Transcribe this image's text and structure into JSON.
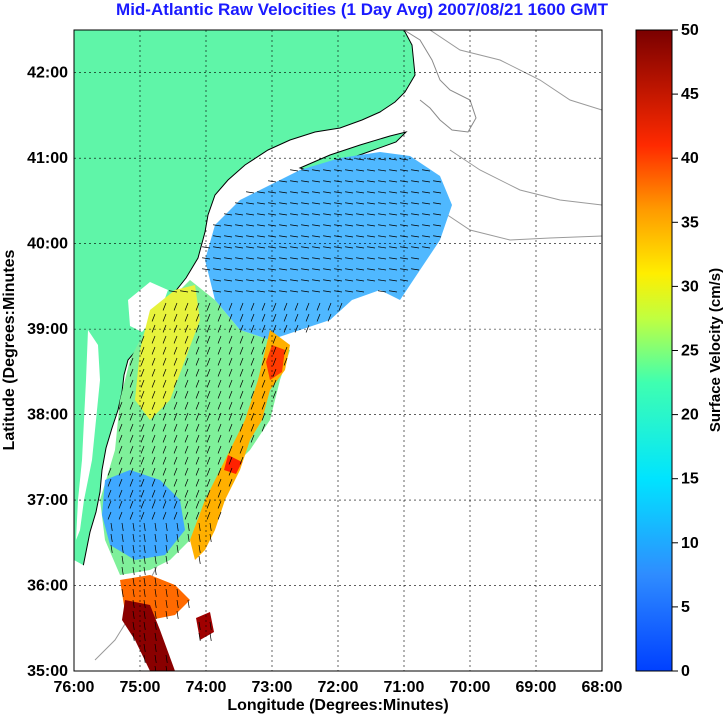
{
  "title": "Mid-Atlantic Raw Velocities (1 Day Avg) 2007/08/21 1600 GMT",
  "map": {
    "xlabel": "Longitude (Degrees:Minutes)",
    "ylabel": "Latitude (Degrees:Minutes",
    "lon_range": [
      -76,
      -68
    ],
    "lat_range": [
      35,
      42.5
    ],
    "lon_ticks": [
      "76:00",
      "75:00",
      "74:00",
      "73:00",
      "72:00",
      "71:00",
      "70:00",
      "69:00",
      "68:00"
    ],
    "lat_ticks": [
      "35:00",
      "36:00",
      "37:00",
      "38:00",
      "39:00",
      "40:00",
      "41:00",
      "42:00"
    ],
    "land_color": "#5ff5a8",
    "grid": true
  },
  "colorbar": {
    "label": "Surface Velocity (cm/s)",
    "min": 0,
    "max": 50,
    "ticks": [
      "0",
      "5",
      "10",
      "15",
      "20",
      "25",
      "30",
      "35",
      "40",
      "45",
      "50"
    ],
    "colormap": "jet"
  }
}
